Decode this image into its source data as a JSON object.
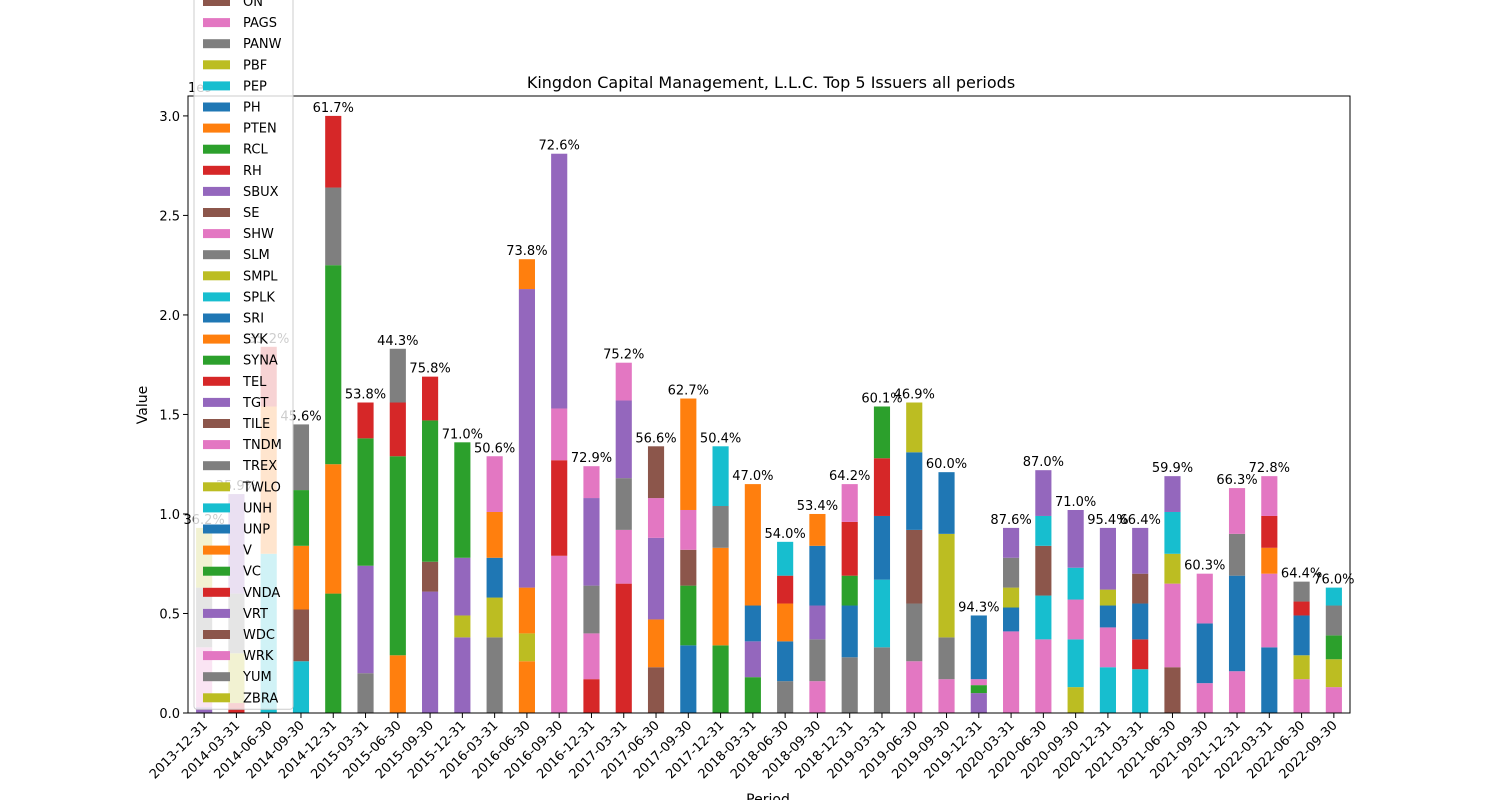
{
  "chart_data": {
    "type": "bar",
    "stacked": true,
    "title": "Kingdon Capital Management, L.L.C. Top 5 Issuers all periods",
    "xlabel": "Period",
    "ylabel": "Value",
    "scale_label": "1e9",
    "ylim": [
      0,
      3.1
    ],
    "yticks": [
      "0.0",
      "0.5",
      "1.0",
      "1.5",
      "2.0",
      "2.5",
      "3.0"
    ],
    "grid": false,
    "legend_position": "upper-left",
    "categories": [
      "2013-12-31",
      "2014-03-31",
      "2014-06-30",
      "2014-09-30",
      "2014-12-31",
      "2015-03-31",
      "2015-06-30",
      "2015-09-30",
      "2015-12-31",
      "2016-03-31",
      "2016-06-30",
      "2016-09-30",
      "2016-12-31",
      "2017-03-31",
      "2017-06-30",
      "2017-09-30",
      "2017-12-31",
      "2018-03-31",
      "2018-06-30",
      "2018-09-30",
      "2018-12-31",
      "2019-03-31",
      "2019-06-30",
      "2019-09-30",
      "2019-12-31",
      "2020-03-31",
      "2020-06-30",
      "2020-09-30",
      "2020-12-31",
      "2021-03-31",
      "2021-06-30",
      "2021-09-30",
      "2021-12-31",
      "2022-03-31",
      "2022-06-30",
      "2022-09-30"
    ],
    "percent_labels": [
      "36.2%",
      "35.9%",
      "35.2%",
      "45.6%",
      "61.7%",
      "53.8%",
      "44.3%",
      "75.8%",
      "71.0%",
      "50.6%",
      "73.8%",
      "72.6%",
      "72.9%",
      "75.2%",
      "56.6%",
      "62.7%",
      "50.4%",
      "47.0%",
      "54.0%",
      "53.4%",
      "64.2%",
      "60.1%",
      "46.9%",
      "60.0%",
      "94.3%",
      "87.6%",
      "87.0%",
      "71.0%",
      "95.4%",
      "66.4%",
      "59.9%",
      "60.3%",
      "66.3%",
      "72.8%",
      "64.4%",
      "76.0%"
    ],
    "colors": {
      "blue": "#1f77b4",
      "orange": "#ff7f0e",
      "green": "#2ca02c",
      "red": "#d62728",
      "purple": "#9467bd",
      "brown": "#8c564b",
      "pink": "#e377c2",
      "gray": "#7f7f7f",
      "olive": "#bcbd22",
      "cyan": "#17becf"
    },
    "stacks": [
      [
        [
          "purple",
          0.03
        ],
        [
          "pink",
          0.3
        ],
        [
          "gray",
          0.3
        ],
        [
          "olive",
          0.3
        ]
      ],
      [
        [
          "red",
          0.05
        ],
        [
          "olive",
          0.25
        ],
        [
          "gray",
          0.3
        ],
        [
          "purple",
          0.5
        ]
      ],
      [
        [
          "cyan",
          0.8
        ],
        [
          "orange",
          0.74
        ],
        [
          "red",
          0.3
        ]
      ],
      [
        [
          "cyan",
          0.26
        ],
        [
          "brown",
          0.26
        ],
        [
          "orange",
          0.32
        ],
        [
          "green",
          0.28
        ],
        [
          "gray",
          0.33
        ]
      ],
      [
        [
          "green",
          0.6
        ],
        [
          "orange",
          0.65
        ],
        [
          "green",
          1.0
        ],
        [
          "gray",
          0.39
        ],
        [
          "red",
          0.36
        ]
      ],
      [
        [
          "gray",
          0.2
        ],
        [
          "purple",
          0.54
        ],
        [
          "green",
          0.64
        ],
        [
          "red",
          0.18
        ]
      ],
      [
        [
          "orange",
          0.29
        ],
        [
          "green",
          1.0
        ],
        [
          "red",
          0.27
        ],
        [
          "gray",
          0.27
        ]
      ],
      [
        [
          "purple",
          0.61
        ],
        [
          "brown",
          0.15
        ],
        [
          "green",
          0.71
        ],
        [
          "red",
          0.22
        ]
      ],
      [
        [
          "purple",
          0.38
        ],
        [
          "olive",
          0.11
        ],
        [
          "purple",
          0.29
        ],
        [
          "green",
          0.58
        ]
      ],
      [
        [
          "gray",
          0.38
        ],
        [
          "olive",
          0.2
        ],
        [
          "blue",
          0.2
        ],
        [
          "orange",
          0.23
        ],
        [
          "pink",
          0.28
        ]
      ],
      [
        [
          "orange",
          0.26
        ],
        [
          "olive",
          0.14
        ],
        [
          "orange",
          0.23
        ],
        [
          "purple",
          1.5
        ],
        [
          "orange",
          0.15
        ]
      ],
      [
        [
          "pink",
          0.79
        ],
        [
          "red",
          0.48
        ],
        [
          "pink",
          0.26
        ],
        [
          "purple",
          1.28
        ]
      ],
      [
        [
          "red",
          0.17
        ],
        [
          "pink",
          0.23
        ],
        [
          "gray",
          0.24
        ],
        [
          "purple",
          0.44
        ],
        [
          "pink",
          0.16
        ]
      ],
      [
        [
          "red",
          0.65
        ],
        [
          "pink",
          0.27
        ],
        [
          "gray",
          0.26
        ],
        [
          "purple",
          0.39
        ],
        [
          "pink",
          0.19
        ]
      ],
      [
        [
          "brown",
          0.23
        ],
        [
          "orange",
          0.24
        ],
        [
          "purple",
          0.41
        ],
        [
          "pink",
          0.2
        ],
        [
          "brown",
          0.26
        ]
      ],
      [
        [
          "blue",
          0.34
        ],
        [
          "green",
          0.3
        ],
        [
          "brown",
          0.18
        ],
        [
          "pink",
          0.2
        ],
        [
          "orange",
          0.56
        ]
      ],
      [
        [
          "green",
          0.34
        ],
        [
          "orange",
          0.49
        ],
        [
          "gray",
          0.21
        ],
        [
          "cyan",
          0.3
        ]
      ],
      [
        [
          "green",
          0.18
        ],
        [
          "purple",
          0.18
        ],
        [
          "blue",
          0.18
        ],
        [
          "orange",
          0.61
        ]
      ],
      [
        [
          "gray",
          0.16
        ],
        [
          "blue",
          0.2
        ],
        [
          "orange",
          0.19
        ],
        [
          "red",
          0.14
        ],
        [
          "cyan",
          0.17
        ]
      ],
      [
        [
          "pink",
          0.16
        ],
        [
          "gray",
          0.21
        ],
        [
          "purple",
          0.17
        ],
        [
          "blue",
          0.3
        ],
        [
          "orange",
          0.16
        ]
      ],
      [
        [
          "gray",
          0.28
        ],
        [
          "blue",
          0.26
        ],
        [
          "green",
          0.15
        ],
        [
          "red",
          0.27
        ],
        [
          "pink",
          0.19
        ]
      ],
      [
        [
          "gray",
          0.33
        ],
        [
          "cyan",
          0.34
        ],
        [
          "blue",
          0.32
        ],
        [
          "red",
          0.29
        ],
        [
          "green",
          0.26
        ]
      ],
      [
        [
          "pink",
          0.26
        ],
        [
          "gray",
          0.29
        ],
        [
          "brown",
          0.37
        ],
        [
          "blue",
          0.39
        ],
        [
          "olive",
          0.25
        ]
      ],
      [
        [
          "pink",
          0.17
        ],
        [
          "gray",
          0.21
        ],
        [
          "olive",
          0.52
        ],
        [
          "blue",
          0.31
        ]
      ],
      [
        [
          "purple",
          0.1
        ],
        [
          "green",
          0.04
        ],
        [
          "pink",
          0.03
        ],
        [
          "blue",
          0.32
        ]
      ],
      [
        [
          "pink",
          0.41
        ],
        [
          "blue",
          0.12
        ],
        [
          "olive",
          0.1
        ],
        [
          "gray",
          0.15
        ],
        [
          "purple",
          0.15
        ]
      ],
      [
        [
          "pink",
          0.37
        ],
        [
          "cyan",
          0.22
        ],
        [
          "brown",
          0.25
        ],
        [
          "cyan",
          0.15
        ],
        [
          "purple",
          0.23
        ]
      ],
      [
        [
          "olive",
          0.13
        ],
        [
          "cyan",
          0.24
        ],
        [
          "pink",
          0.2
        ],
        [
          "cyan",
          0.16
        ],
        [
          "purple",
          0.29
        ]
      ],
      [
        [
          "cyan",
          0.23
        ],
        [
          "pink",
          0.2
        ],
        [
          "blue",
          0.11
        ],
        [
          "olive",
          0.08
        ],
        [
          "purple",
          0.31
        ]
      ],
      [
        [
          "cyan",
          0.22
        ],
        [
          "red",
          0.15
        ],
        [
          "blue",
          0.18
        ],
        [
          "brown",
          0.15
        ],
        [
          "purple",
          0.23
        ]
      ],
      [
        [
          "brown",
          0.23
        ],
        [
          "pink",
          0.42
        ],
        [
          "olive",
          0.15
        ],
        [
          "cyan",
          0.21
        ],
        [
          "purple",
          0.18
        ]
      ],
      [
        [
          "pink",
          0.15
        ],
        [
          "blue",
          0.3
        ],
        [
          "pink",
          0.25
        ]
      ],
      [
        [
          "pink",
          0.21
        ],
        [
          "blue",
          0.48
        ],
        [
          "gray",
          0.21
        ],
        [
          "pink",
          0.23
        ]
      ],
      [
        [
          "blue",
          0.33
        ],
        [
          "pink",
          0.37
        ],
        [
          "orange",
          0.13
        ],
        [
          "red",
          0.16
        ],
        [
          "pink",
          0.2
        ]
      ],
      [
        [
          "pink",
          0.17
        ],
        [
          "olive",
          0.12
        ],
        [
          "blue",
          0.2
        ],
        [
          "red",
          0.07
        ],
        [
          "gray",
          0.1
        ]
      ],
      [
        [
          "pink",
          0.13
        ],
        [
          "olive",
          0.14
        ],
        [
          "green",
          0.12
        ],
        [
          "gray",
          0.15
        ],
        [
          "cyan",
          0.09
        ]
      ]
    ],
    "legend": [
      [
        "ON",
        "brown"
      ],
      [
        "PAGS",
        "pink"
      ],
      [
        "PANW",
        "gray"
      ],
      [
        "PBF",
        "olive"
      ],
      [
        "PEP",
        "cyan"
      ],
      [
        "PH",
        "blue"
      ],
      [
        "PTEN",
        "orange"
      ],
      [
        "RCL",
        "green"
      ],
      [
        "RH",
        "red"
      ],
      [
        "SBUX",
        "purple"
      ],
      [
        "SE",
        "brown"
      ],
      [
        "SHW",
        "pink"
      ],
      [
        "SLM",
        "gray"
      ],
      [
        "SMPL",
        "olive"
      ],
      [
        "SPLK",
        "cyan"
      ],
      [
        "SRI",
        "blue"
      ],
      [
        "SYK",
        "orange"
      ],
      [
        "SYNA",
        "green"
      ],
      [
        "TEL",
        "red"
      ],
      [
        "TGT",
        "purple"
      ],
      [
        "TILE",
        "brown"
      ],
      [
        "TNDM",
        "pink"
      ],
      [
        "TREX",
        "gray"
      ],
      [
        "TWLO",
        "olive"
      ],
      [
        "UNH",
        "cyan"
      ],
      [
        "UNP",
        "blue"
      ],
      [
        "V",
        "orange"
      ],
      [
        "VC",
        "green"
      ],
      [
        "VNDA",
        "red"
      ],
      [
        "VRT",
        "purple"
      ],
      [
        "WDC",
        "brown"
      ],
      [
        "WRK",
        "pink"
      ],
      [
        "YUM",
        "gray"
      ],
      [
        "ZBRA",
        "olive"
      ]
    ]
  }
}
